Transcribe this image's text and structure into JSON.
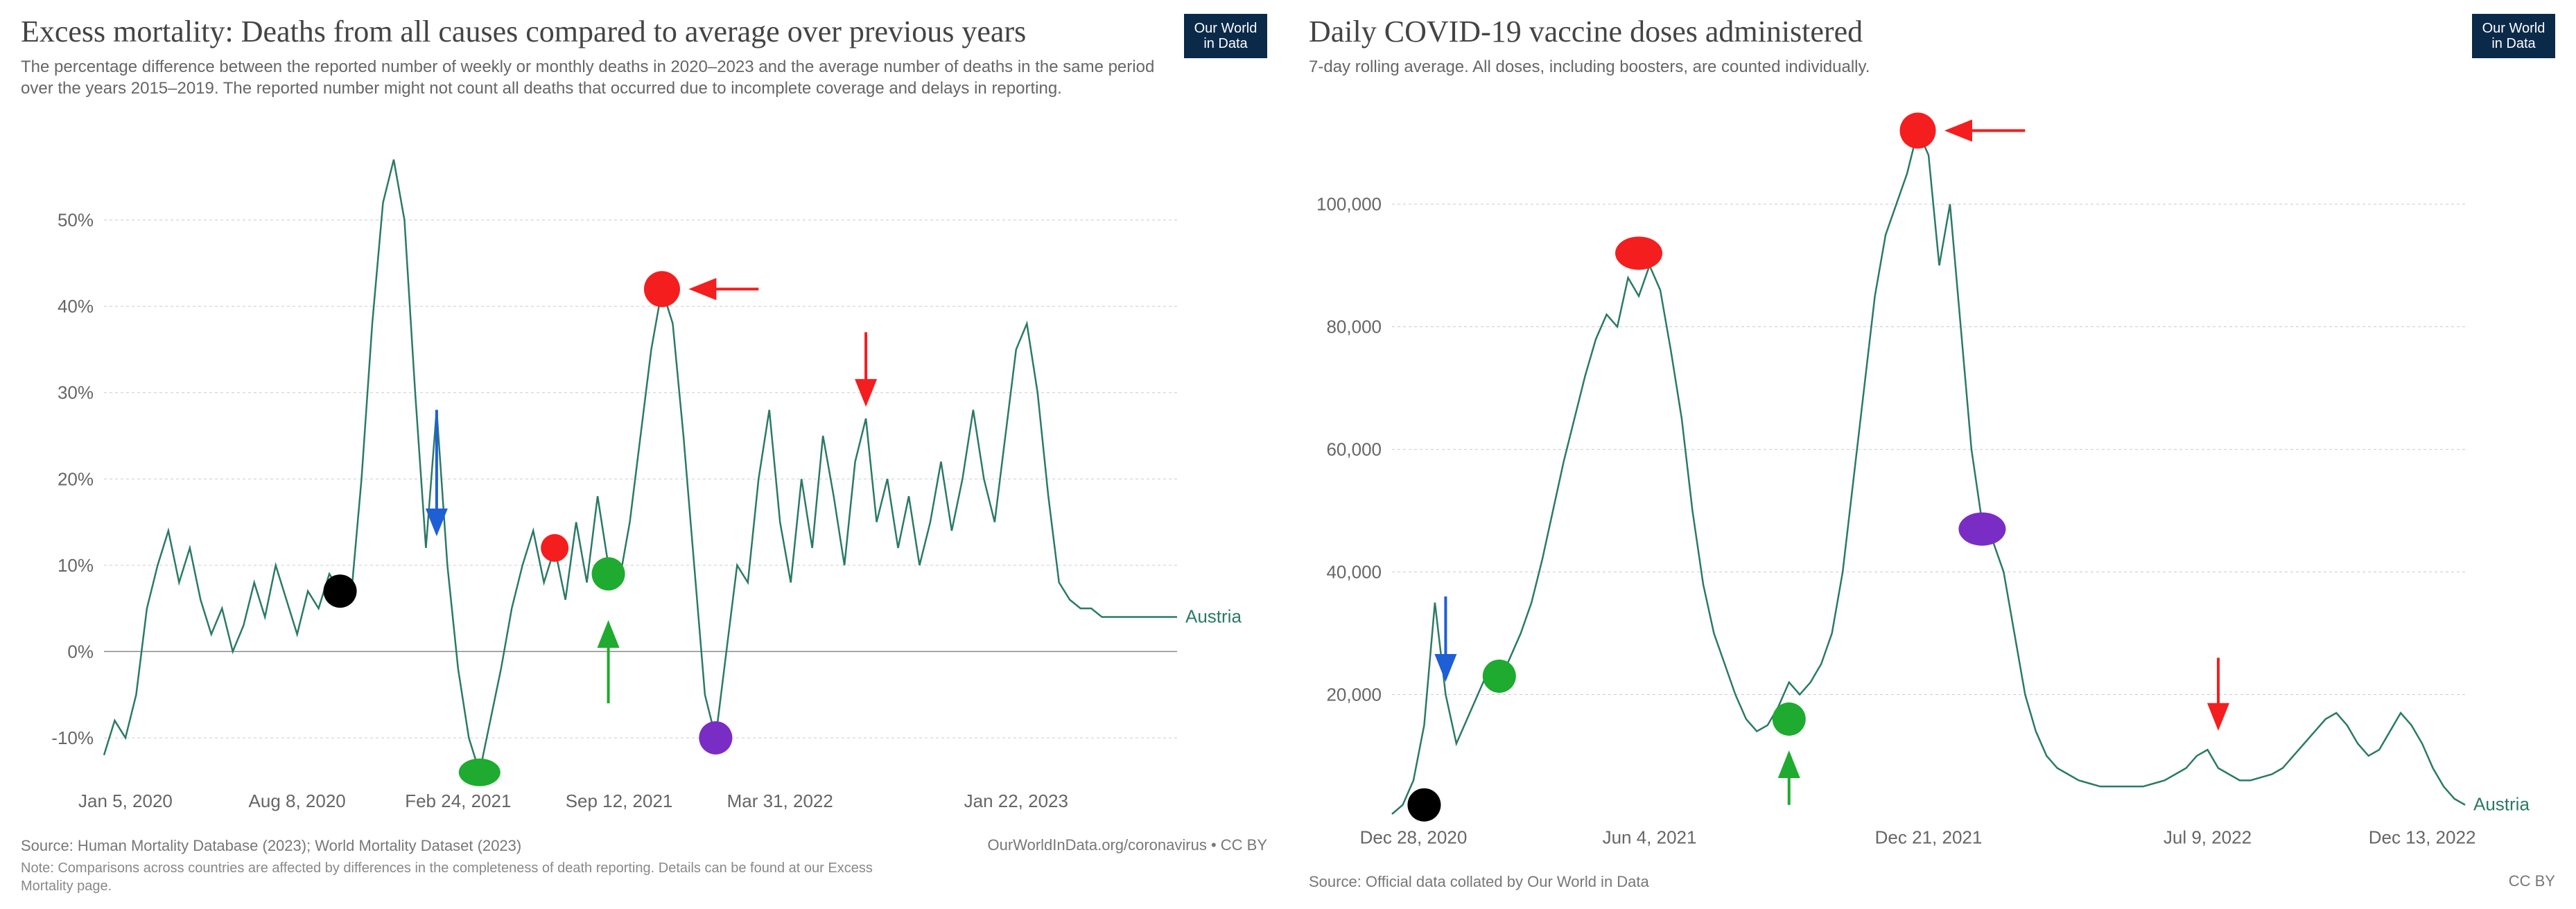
{
  "logo_text": "Our World\nin Data",
  "left_chart": {
    "type": "line",
    "title": "Excess mortality: Deaths from all causes compared to average over previous years",
    "subtitle": "The percentage difference between the reported number of weekly or monthly deaths in 2020–2023 and the average number of deaths in the same period over the years 2015–2019. The reported number might not count all deaths that occurred due to incomplete coverage and delays in reporting.",
    "series_label": "Austria",
    "series_color": "#2a7a65",
    "background_color": "#ffffff",
    "grid_color": "#cccccc",
    "zero_color": "#888888",
    "axis_label_color": "#666666",
    "title_fontsize": 44,
    "subtitle_fontsize": 24,
    "axis_fontsize": 26,
    "ylim": [
      -15,
      60
    ],
    "ytick_values": [
      -10,
      0,
      10,
      20,
      30,
      40,
      50
    ],
    "ytick_labels": [
      "-10%",
      "0%",
      "10%",
      "20%",
      "30%",
      "40%",
      "50%"
    ],
    "xlim": [
      0,
      100
    ],
    "xtick_values": [
      2,
      18,
      33,
      48,
      63,
      85
    ],
    "xtick_labels": [
      "Jan 5, 2020",
      "Aug 8, 2020",
      "Feb 24, 2021",
      "Sep 12, 2021",
      "Mar 31, 2022",
      "Jan 22, 2023"
    ],
    "line_width": 2.5,
    "data": [
      [
        0,
        -12
      ],
      [
        1,
        -8
      ],
      [
        2,
        -10
      ],
      [
        3,
        -5
      ],
      [
        4,
        5
      ],
      [
        5,
        10
      ],
      [
        6,
        14
      ],
      [
        7,
        8
      ],
      [
        8,
        12
      ],
      [
        9,
        6
      ],
      [
        10,
        2
      ],
      [
        11,
        5
      ],
      [
        12,
        0
      ],
      [
        13,
        3
      ],
      [
        14,
        8
      ],
      [
        15,
        4
      ],
      [
        16,
        10
      ],
      [
        17,
        6
      ],
      [
        18,
        2
      ],
      [
        19,
        7
      ],
      [
        20,
        5
      ],
      [
        21,
        9
      ],
      [
        22,
        7
      ],
      [
        23,
        6
      ],
      [
        24,
        20
      ],
      [
        25,
        38
      ],
      [
        26,
        52
      ],
      [
        27,
        57
      ],
      [
        28,
        50
      ],
      [
        29,
        30
      ],
      [
        30,
        12
      ],
      [
        31,
        28
      ],
      [
        32,
        10
      ],
      [
        33,
        -2
      ],
      [
        34,
        -10
      ],
      [
        35,
        -14
      ],
      [
        36,
        -8
      ],
      [
        37,
        -2
      ],
      [
        38,
        5
      ],
      [
        39,
        10
      ],
      [
        40,
        14
      ],
      [
        41,
        8
      ],
      [
        42,
        12
      ],
      [
        43,
        6
      ],
      [
        44,
        15
      ],
      [
        45,
        8
      ],
      [
        46,
        18
      ],
      [
        47,
        10
      ],
      [
        48,
        8
      ],
      [
        49,
        15
      ],
      [
        50,
        25
      ],
      [
        51,
        35
      ],
      [
        52,
        42
      ],
      [
        53,
        38
      ],
      [
        54,
        25
      ],
      [
        55,
        10
      ],
      [
        56,
        -5
      ],
      [
        57,
        -10
      ],
      [
        58,
        0
      ],
      [
        59,
        10
      ],
      [
        60,
        8
      ],
      [
        61,
        20
      ],
      [
        62,
        28
      ],
      [
        63,
        15
      ],
      [
        64,
        8
      ],
      [
        65,
        20
      ],
      [
        66,
        12
      ],
      [
        67,
        25
      ],
      [
        68,
        18
      ],
      [
        69,
        10
      ],
      [
        70,
        22
      ],
      [
        71,
        27
      ],
      [
        72,
        15
      ],
      [
        73,
        20
      ],
      [
        74,
        12
      ],
      [
        75,
        18
      ],
      [
        76,
        10
      ],
      [
        77,
        15
      ],
      [
        78,
        22
      ],
      [
        79,
        14
      ],
      [
        80,
        20
      ],
      [
        81,
        28
      ],
      [
        82,
        20
      ],
      [
        83,
        15
      ],
      [
        84,
        25
      ],
      [
        85,
        35
      ],
      [
        86,
        38
      ],
      [
        87,
        30
      ],
      [
        88,
        18
      ],
      [
        89,
        8
      ],
      [
        90,
        6
      ],
      [
        91,
        5
      ],
      [
        92,
        5
      ],
      [
        93,
        4
      ],
      [
        94,
        4
      ],
      [
        95,
        4
      ],
      [
        96,
        4
      ],
      [
        97,
        4
      ],
      [
        98,
        4
      ],
      [
        99,
        4
      ],
      [
        100,
        4
      ]
    ],
    "markers": [
      {
        "type": "circle",
        "x": 22,
        "y": 7,
        "r": 24,
        "fill": "#000000"
      },
      {
        "type": "circle",
        "x": 35,
        "y": -14,
        "rx": 30,
        "ry": 20,
        "fill": "#1eab2f"
      },
      {
        "type": "circle",
        "x": 42,
        "y": 12,
        "r": 20,
        "fill": "#f41e1e"
      },
      {
        "type": "circle",
        "x": 47,
        "y": 9,
        "r": 24,
        "fill": "#1eab2f"
      },
      {
        "type": "circle",
        "x": 52,
        "y": 42,
        "r": 26,
        "fill": "#f41e1e"
      },
      {
        "type": "circle",
        "x": 57,
        "y": -10,
        "r": 24,
        "fill": "#7a2dc4"
      },
      {
        "type": "arrow",
        "x1": 31,
        "y1": 28,
        "x2": 31,
        "y2": 14,
        "color": "#1e5fd6"
      },
      {
        "type": "arrow",
        "x1": 47,
        "y1": -6,
        "x2": 47,
        "y2": 3,
        "color": "#1eab2f"
      },
      {
        "type": "arrow",
        "x1": 61,
        "y1": 42,
        "x2": 55,
        "y2": 42,
        "color": "#f41e1e"
      },
      {
        "type": "arrow",
        "x1": 71,
        "y1": 37,
        "x2": 71,
        "y2": 29,
        "color": "#f41e1e"
      }
    ],
    "source_text": "Source: Human Mortality Database (2023); World Mortality Dataset (2023)",
    "note_text": "Note: Comparisons across countries are affected by differences in the completeness of death reporting. Details can be found at our Excess Mortality page.",
    "attribution": "OurWorldInData.org/coronavirus • CC BY"
  },
  "right_chart": {
    "type": "line",
    "title": "Daily COVID-19 vaccine doses administered",
    "subtitle": "7-day rolling average. All doses, including boosters, are counted individually.",
    "series_label": "Austria",
    "series_color": "#2a7a65",
    "background_color": "#ffffff",
    "grid_color": "#cccccc",
    "axis_label_color": "#666666",
    "title_fontsize": 44,
    "subtitle_fontsize": 24,
    "axis_fontsize": 26,
    "ylim": [
      0,
      115000
    ],
    "ytick_values": [
      20000,
      40000,
      60000,
      80000,
      100000
    ],
    "ytick_labels": [
      "20,000",
      "40,000",
      "60,000",
      "80,000",
      "100,000"
    ],
    "xlim": [
      0,
      100
    ],
    "xtick_values": [
      2,
      24,
      50,
      76,
      96
    ],
    "xtick_labels": [
      "Dec 28, 2020",
      "Jun 4, 2021",
      "Dec 21, 2021",
      "Jul 9, 2022",
      "Dec 13, 2022"
    ],
    "line_width": 2.5,
    "data": [
      [
        0,
        500
      ],
      [
        1,
        2000
      ],
      [
        2,
        6000
      ],
      [
        3,
        15000
      ],
      [
        4,
        35000
      ],
      [
        5,
        20000
      ],
      [
        6,
        12000
      ],
      [
        7,
        16000
      ],
      [
        8,
        20000
      ],
      [
        9,
        24000
      ],
      [
        10,
        22000
      ],
      [
        11,
        26000
      ],
      [
        12,
        30000
      ],
      [
        13,
        35000
      ],
      [
        14,
        42000
      ],
      [
        15,
        50000
      ],
      [
        16,
        58000
      ],
      [
        17,
        65000
      ],
      [
        18,
        72000
      ],
      [
        19,
        78000
      ],
      [
        20,
        82000
      ],
      [
        21,
        80000
      ],
      [
        22,
        88000
      ],
      [
        23,
        85000
      ],
      [
        24,
        90000
      ],
      [
        25,
        86000
      ],
      [
        26,
        76000
      ],
      [
        27,
        65000
      ],
      [
        28,
        50000
      ],
      [
        29,
        38000
      ],
      [
        30,
        30000
      ],
      [
        31,
        25000
      ],
      [
        32,
        20000
      ],
      [
        33,
        16000
      ],
      [
        34,
        14000
      ],
      [
        35,
        15000
      ],
      [
        36,
        18000
      ],
      [
        37,
        22000
      ],
      [
        38,
        20000
      ],
      [
        39,
        22000
      ],
      [
        40,
        25000
      ],
      [
        41,
        30000
      ],
      [
        42,
        40000
      ],
      [
        43,
        55000
      ],
      [
        44,
        70000
      ],
      [
        45,
        85000
      ],
      [
        46,
        95000
      ],
      [
        47,
        100000
      ],
      [
        48,
        105000
      ],
      [
        49,
        112000
      ],
      [
        50,
        108000
      ],
      [
        51,
        90000
      ],
      [
        52,
        100000
      ],
      [
        53,
        80000
      ],
      [
        54,
        60000
      ],
      [
        55,
        48000
      ],
      [
        56,
        45000
      ],
      [
        57,
        40000
      ],
      [
        58,
        30000
      ],
      [
        59,
        20000
      ],
      [
        60,
        14000
      ],
      [
        61,
        10000
      ],
      [
        62,
        8000
      ],
      [
        63,
        7000
      ],
      [
        64,
        6000
      ],
      [
        65,
        5500
      ],
      [
        66,
        5000
      ],
      [
        67,
        5000
      ],
      [
        68,
        5000
      ],
      [
        69,
        5000
      ],
      [
        70,
        5000
      ],
      [
        71,
        5500
      ],
      [
        72,
        6000
      ],
      [
        73,
        7000
      ],
      [
        74,
        8000
      ],
      [
        75,
        10000
      ],
      [
        76,
        11000
      ],
      [
        77,
        8000
      ],
      [
        78,
        7000
      ],
      [
        79,
        6000
      ],
      [
        80,
        6000
      ],
      [
        81,
        6500
      ],
      [
        82,
        7000
      ],
      [
        83,
        8000
      ],
      [
        84,
        10000
      ],
      [
        85,
        12000
      ],
      [
        86,
        14000
      ],
      [
        87,
        16000
      ],
      [
        88,
        17000
      ],
      [
        89,
        15000
      ],
      [
        90,
        12000
      ],
      [
        91,
        10000
      ],
      [
        92,
        11000
      ],
      [
        93,
        14000
      ],
      [
        94,
        17000
      ],
      [
        95,
        15000
      ],
      [
        96,
        12000
      ],
      [
        97,
        8000
      ],
      [
        98,
        5000
      ],
      [
        99,
        3000
      ],
      [
        100,
        2000
      ]
    ],
    "markers": [
      {
        "type": "circle",
        "x": 3,
        "y": 2000,
        "r": 24,
        "fill": "#000000"
      },
      {
        "type": "circle",
        "x": 10,
        "y": 23000,
        "r": 24,
        "fill": "#1eab2f"
      },
      {
        "type": "circle",
        "x": 23,
        "y": 92000,
        "rx": 34,
        "ry": 24,
        "fill": "#f41e1e"
      },
      {
        "type": "circle",
        "x": 37,
        "y": 16000,
        "r": 24,
        "fill": "#1eab2f"
      },
      {
        "type": "circle",
        "x": 49,
        "y": 112000,
        "r": 26,
        "fill": "#f41e1e"
      },
      {
        "type": "circle",
        "x": 55,
        "y": 47000,
        "rx": 34,
        "ry": 24,
        "fill": "#7a2dc4"
      },
      {
        "type": "arrow",
        "x1": 5,
        "y1": 36000,
        "x2": 5,
        "y2": 23000,
        "color": "#1e5fd6"
      },
      {
        "type": "arrow",
        "x1": 37,
        "y1": 2000,
        "x2": 37,
        "y2": 10000,
        "color": "#1eab2f"
      },
      {
        "type": "arrow",
        "x1": 59,
        "y1": 112000,
        "x2": 52,
        "y2": 112000,
        "color": "#f41e1e"
      },
      {
        "type": "arrow",
        "x1": 77,
        "y1": 26000,
        "x2": 77,
        "y2": 15000,
        "color": "#f41e1e"
      }
    ],
    "source_text": "Source: Official data collated by Our World in Data",
    "note_text": "",
    "attribution": "CC BY"
  }
}
